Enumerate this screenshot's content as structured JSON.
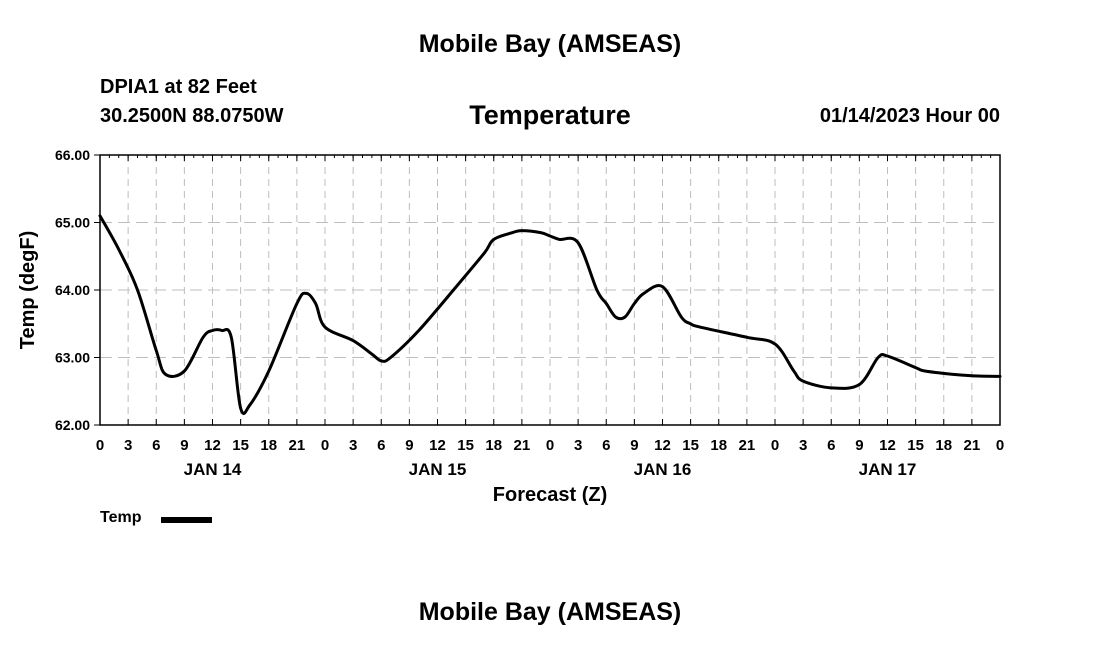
{
  "page": {
    "title": "Mobile Bay (AMSEAS)",
    "station": "DPIA1 at 82 Feet",
    "coords": "30.2500N  88.0750W",
    "variable": "Temperature",
    "datetime": "01/14/2023 Hour 00",
    "footer_title": "Mobile Bay (AMSEAS)"
  },
  "chart_data": {
    "type": "line",
    "xlabel": "Forecast (Z)",
    "ylabel": "Temp (degF)",
    "ylim": [
      62.0,
      66.0
    ],
    "xlim": [
      0,
      96
    ],
    "yticks": [
      62.0,
      63.0,
      64.0,
      65.0,
      66.0
    ],
    "ytick_labels": [
      "62.00",
      "63.00",
      "64.00",
      "65.00",
      "66.00"
    ],
    "xticks_hours": [
      0,
      3,
      6,
      9,
      12,
      15,
      18,
      21,
      24,
      27,
      30,
      33,
      36,
      39,
      42,
      45,
      48,
      51,
      54,
      57,
      60,
      63,
      66,
      69,
      72,
      75,
      78,
      81,
      84,
      87,
      90,
      93,
      96
    ],
    "xtick_labels": [
      "0",
      "3",
      "6",
      "9",
      "12",
      "15",
      "18",
      "21",
      "0",
      "3",
      "6",
      "9",
      "12",
      "15",
      "18",
      "21",
      "0",
      "3",
      "6",
      "9",
      "12",
      "15",
      "18",
      "21",
      "0",
      "3",
      "6",
      "9",
      "12",
      "15",
      "18",
      "21",
      "0"
    ],
    "day_labels": [
      {
        "label": "JAN 14",
        "hour": 12
      },
      {
        "label": "JAN 15",
        "hour": 36
      },
      {
        "label": "JAN 16",
        "hour": 60
      },
      {
        "label": "JAN 17",
        "hour": 84
      }
    ],
    "grid": true,
    "legend_position": "bottom-left",
    "series": [
      {
        "name": "Temp",
        "color": "#000000",
        "x": [
          0,
          2,
          4,
          6,
          7,
          9,
          11,
          12,
          13,
          14,
          15,
          16,
          18,
          21,
          22,
          23,
          24,
          27,
          29,
          30,
          31,
          34,
          38,
          41,
          42,
          44,
          45,
          47,
          48,
          49,
          51,
          53,
          54,
          55,
          56,
          57,
          58,
          60,
          62,
          63,
          64,
          69,
          72,
          74,
          75,
          78,
          81,
          83,
          84,
          87,
          88,
          91,
          93,
          96
        ],
        "y": [
          65.1,
          64.6,
          64.0,
          63.1,
          62.75,
          62.8,
          63.3,
          63.4,
          63.4,
          63.3,
          62.25,
          62.3,
          62.8,
          63.8,
          63.95,
          63.8,
          63.45,
          63.25,
          63.05,
          62.95,
          63.0,
          63.4,
          64.05,
          64.55,
          64.75,
          64.85,
          64.88,
          64.85,
          64.8,
          64.75,
          64.7,
          64.0,
          63.8,
          63.6,
          63.6,
          63.8,
          63.95,
          64.05,
          63.6,
          63.5,
          63.45,
          63.3,
          63.2,
          62.8,
          62.65,
          62.55,
          62.6,
          63.0,
          63.02,
          62.85,
          62.8,
          62.75,
          62.73,
          62.72
        ]
      }
    ]
  }
}
